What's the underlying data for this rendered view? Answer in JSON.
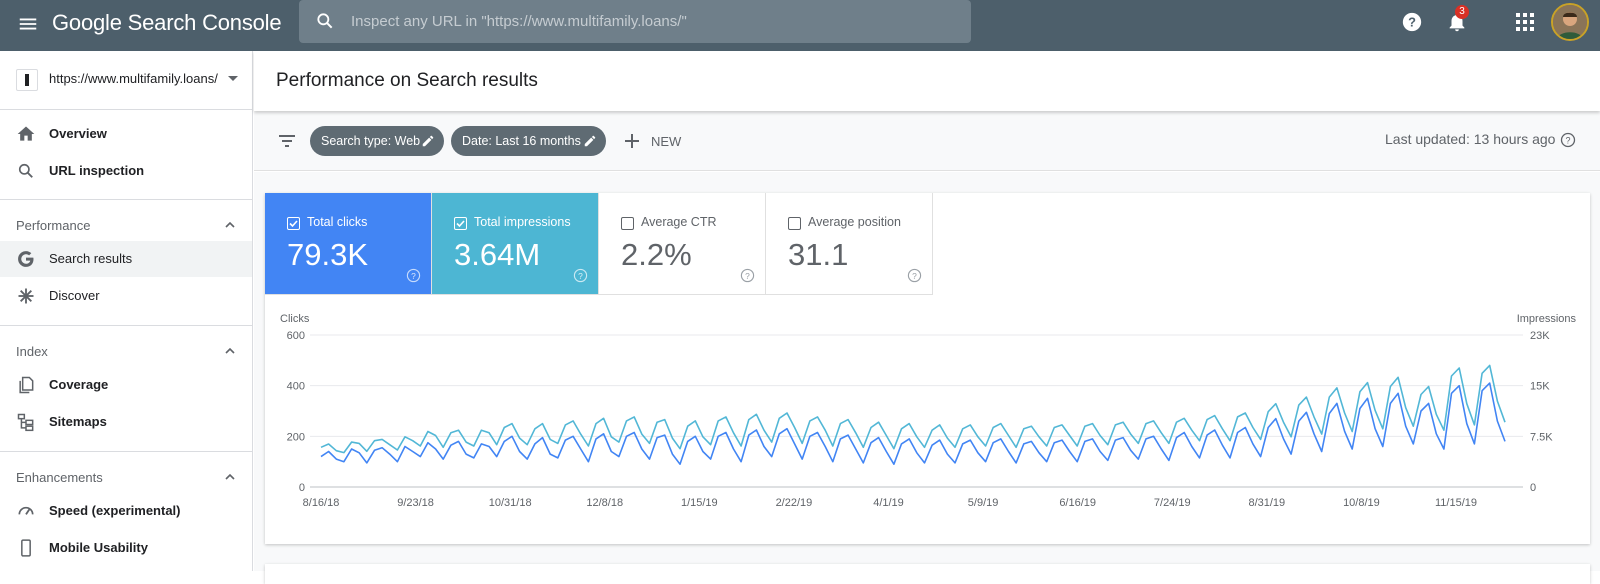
{
  "topbar": {
    "logo": "Google Search Console",
    "search_placeholder": "Inspect any URL in \"https://www.multifamily.loans/\"",
    "notification_count": "3",
    "icons": [
      "menu-icon",
      "search-icon",
      "help-icon",
      "bell-icon",
      "apps-icon"
    ]
  },
  "sidebar": {
    "property_url": "https://www.multifamily.loans/",
    "items": [
      {
        "label": "Overview",
        "icon": "home-icon"
      },
      {
        "label": "URL inspection",
        "icon": "search-icon"
      }
    ],
    "sections": [
      {
        "label": "Performance",
        "items": [
          {
            "label": "Search results",
            "icon": "google-g-icon",
            "active": true
          },
          {
            "label": "Discover",
            "icon": "asterisk-icon"
          }
        ]
      },
      {
        "label": "Index",
        "items": [
          {
            "label": "Coverage",
            "icon": "copy-icon"
          },
          {
            "label": "Sitemaps",
            "icon": "sitemap-icon"
          }
        ]
      },
      {
        "label": "Enhancements",
        "items": [
          {
            "label": "Speed (experimental)",
            "icon": "speed-icon"
          },
          {
            "label": "Mobile Usability",
            "icon": "phone-icon"
          }
        ]
      }
    ]
  },
  "main": {
    "title": "Performance on Search results",
    "filters": [
      {
        "label": "Search type: Web"
      },
      {
        "label": "Date: Last 16 months"
      }
    ],
    "new_label": "NEW",
    "last_updated": "Last updated: 13 hours ago"
  },
  "metrics": [
    {
      "label": "Total clicks",
      "value": "79.3K",
      "checked": true,
      "color": "#4285f4"
    },
    {
      "label": "Total impressions",
      "value": "3.64M",
      "checked": true,
      "color": "#4db6d3"
    },
    {
      "label": "Average CTR",
      "value": "2.2%",
      "checked": false
    },
    {
      "label": "Average position",
      "value": "31.1",
      "checked": false
    }
  ],
  "chart_data": {
    "type": "line",
    "left_axis_label": "Clicks",
    "right_axis_label": "Impressions",
    "left_ticks": [
      "600",
      "400",
      "200",
      "0"
    ],
    "right_ticks": [
      "23K",
      "15K",
      "7.5K",
      "0"
    ],
    "ylim_left": [
      0,
      600
    ],
    "ylim_right": [
      0,
      23000
    ],
    "x_ticks": [
      "8/16/18",
      "9/23/18",
      "10/31/18",
      "12/8/18",
      "1/15/19",
      "2/22/19",
      "4/1/19",
      "5/9/19",
      "6/16/19",
      "7/24/19",
      "8/31/19",
      "10/8/19",
      "11/15/19"
    ],
    "grid": true,
    "legend": "none",
    "series": [
      {
        "name": "Clicks",
        "axis": "left",
        "color": "#4285f4",
        "values": [
          120,
          140,
          110,
          100,
          150,
          135,
          95,
          145,
          155,
          130,
          100,
          160,
          140,
          120,
          175,
          150,
          110,
          165,
          180,
          130,
          115,
          170,
          160,
          120,
          180,
          200,
          140,
          110,
          170,
          195,
          130,
          115,
          185,
          200,
          150,
          100,
          190,
          210,
          140,
          120,
          200,
          215,
          150,
          110,
          195,
          205,
          130,
          90,
          180,
          200,
          140,
          110,
          200,
          215,
          150,
          100,
          205,
          225,
          160,
          120,
          210,
          230,
          170,
          110,
          200,
          215,
          160,
          100,
          190,
          205,
          150,
          95,
          175,
          195,
          140,
          90,
          170,
          190,
          135,
          95,
          165,
          185,
          130,
          95,
          170,
          185,
          135,
          100,
          175,
          190,
          140,
          95,
          170,
          180,
          135,
          100,
          175,
          185,
          140,
          100,
          180,
          190,
          140,
          105,
          185,
          195,
          145,
          110,
          190,
          200,
          150,
          105,
          195,
          215,
          160,
          115,
          205,
          225,
          165,
          115,
          215,
          235,
          170,
          120,
          235,
          270,
          190,
          130,
          260,
          295,
          210,
          140,
          290,
          330,
          220,
          150,
          310,
          350,
          230,
          160,
          330,
          370,
          240,
          170,
          300,
          330,
          210,
          150,
          370,
          400,
          250,
          170,
          380,
          410,
          260,
          180
        ]
      },
      {
        "name": "Impressions",
        "axis": "right",
        "color": "#52b7d6",
        "values": [
          6000,
          6500,
          5500,
          5200,
          6800,
          6600,
          5400,
          7000,
          7200,
          6400,
          5600,
          7600,
          7000,
          6200,
          8400,
          7800,
          6000,
          8200,
          8600,
          6800,
          6200,
          8600,
          8200,
          6400,
          9000,
          9600,
          7400,
          6400,
          8800,
          9600,
          7200,
          6600,
          9400,
          10000,
          8000,
          6200,
          9600,
          10400,
          7600,
          6800,
          10000,
          10600,
          8000,
          6600,
          9800,
          10200,
          7400,
          5800,
          9200,
          10000,
          7600,
          6400,
          10000,
          10600,
          8200,
          6200,
          10200,
          11000,
          8600,
          6800,
          10400,
          11200,
          9000,
          6600,
          10000,
          10600,
          8600,
          6200,
          9600,
          10200,
          8200,
          6000,
          9000,
          9800,
          7800,
          5800,
          8800,
          9600,
          7600,
          6000,
          8600,
          9400,
          7400,
          6000,
          8800,
          9400,
          7600,
          6200,
          9000,
          9600,
          7800,
          6000,
          8800,
          9200,
          7600,
          6200,
          9000,
          9400,
          7800,
          6200,
          9200,
          9600,
          7800,
          6400,
          9400,
          9800,
          8000,
          6600,
          9600,
          10000,
          8200,
          6600,
          9800,
          10400,
          8600,
          7000,
          10200,
          10800,
          8800,
          7000,
          10600,
          11200,
          9000,
          7200,
          11400,
          12600,
          9800,
          7600,
          12400,
          13600,
          10600,
          8000,
          13600,
          15000,
          11200,
          8400,
          14400,
          15800,
          11600,
          8800,
          15200,
          16600,
          12000,
          9200,
          14000,
          15200,
          11000,
          8600,
          16800,
          18000,
          12600,
          9400,
          17200,
          18400,
          13000,
          9800
        ]
      }
    ]
  }
}
